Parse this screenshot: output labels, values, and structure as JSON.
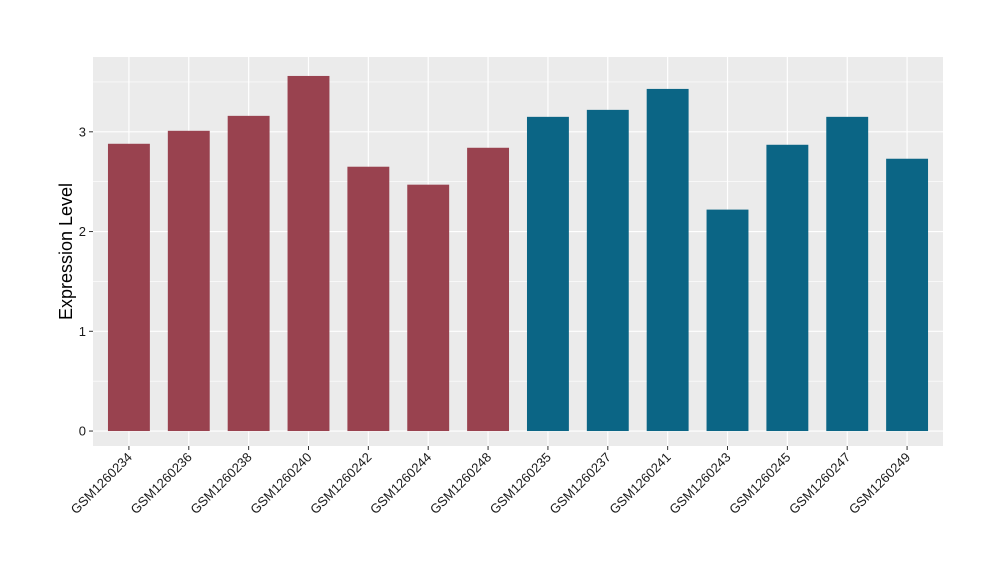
{
  "chart_data": {
    "type": "bar",
    "title": "",
    "xlabel": "",
    "ylabel": "Expression Level",
    "ylim": [
      -0.15,
      3.75
    ],
    "yticks": [
      0,
      1,
      2,
      3
    ],
    "grid": true,
    "legend": "none",
    "categories": [
      "GSM1260234",
      "GSM1260236",
      "GSM1260238",
      "GSM1260240",
      "GSM1260242",
      "GSM1260244",
      "GSM1260248",
      "GSM1260235",
      "GSM1260237",
      "GSM1260241",
      "GSM1260243",
      "GSM1260245",
      "GSM1260247",
      "GSM1260249"
    ],
    "values": [
      2.88,
      3.01,
      3.16,
      3.56,
      2.65,
      2.47,
      2.84,
      3.15,
      3.22,
      3.43,
      2.22,
      2.87,
      3.15,
      2.73
    ],
    "bar_colors": [
      "#99424f",
      "#99424f",
      "#99424f",
      "#99424f",
      "#99424f",
      "#99424f",
      "#99424f",
      "#0b6585",
      "#0b6585",
      "#0b6585",
      "#0b6585",
      "#0b6585",
      "#0b6585",
      "#0b6585"
    ],
    "panel_background": "#ebebeb",
    "grid_color": "#ffffff"
  }
}
